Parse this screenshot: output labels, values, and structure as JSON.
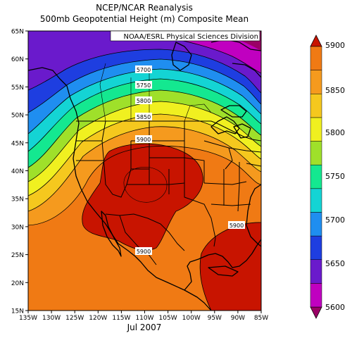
{
  "title": {
    "line1": "NCEP/NCAR Reanalysis",
    "line2": "500mb Geopotential Height (m) Composite Mean"
  },
  "credit": "NOAA/ESRL Physical Sciences Division",
  "period": "Jul 2007",
  "axes": {
    "lat_labels": [
      "65N",
      "60N",
      "55N",
      "50N",
      "45N",
      "40N",
      "35N",
      "30N",
      "25N",
      "20N",
      "15N"
    ],
    "lon_labels": [
      "135W",
      "130W",
      "125W",
      "120W",
      "115W",
      "110W",
      "105W",
      "100W",
      "95W",
      "90W",
      "85W"
    ]
  },
  "contour_labels": [
    {
      "text": "5700"
    },
    {
      "text": "5750"
    },
    {
      "text": "5800"
    },
    {
      "text": "5850"
    },
    {
      "text": "5900"
    },
    {
      "text": "5900"
    },
    {
      "text": "5900"
    }
  ],
  "colorbar": {
    "labels": [
      "5900",
      "5850",
      "5800",
      "5750",
      "5700",
      "5650",
      "5600"
    ],
    "colors": [
      "#9a0066",
      "#c000c0",
      "#6a1acc",
      "#1e3ee0",
      "#1f8ef0",
      "#14d4d4",
      "#14e890",
      "#9fe02a",
      "#f0f020",
      "#f5c81e",
      "#f59a1e",
      "#f07a14",
      "#c81400"
    ]
  }
}
